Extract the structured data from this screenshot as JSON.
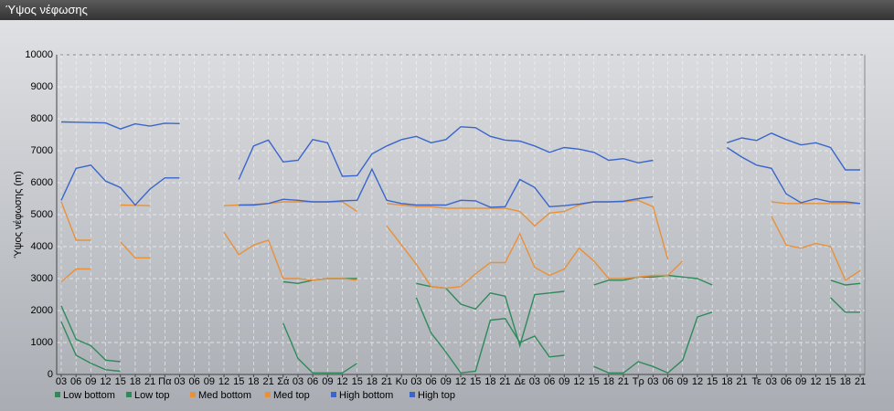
{
  "window_title": "Ύψος νέφωσης",
  "chart_data": {
    "type": "line",
    "ylabel": "Ύψος νέφωσης (m)",
    "ylim": [
      0,
      10000
    ],
    "yticks": [
      0,
      1000,
      2000,
      3000,
      4000,
      5000,
      6000,
      7000,
      8000,
      9000,
      10000
    ],
    "grid": true,
    "legend": "bottom",
    "categories": [
      "03",
      "06",
      "09",
      "12",
      "15",
      "18",
      "21",
      "Πα",
      "03",
      "06",
      "09",
      "12",
      "15",
      "18",
      "21",
      "Σά",
      "03",
      "06",
      "09",
      "12",
      "15",
      "18",
      "21",
      "Κυ",
      "03",
      "06",
      "09",
      "12",
      "15",
      "18",
      "21",
      "Δε",
      "03",
      "06",
      "09",
      "12",
      "15",
      "18",
      "21",
      "Τρ",
      "03",
      "06",
      "09",
      "12",
      "15",
      "18",
      "21",
      "Τε",
      "03",
      "06",
      "09",
      "12",
      "15",
      "18",
      "21"
    ],
    "series": [
      {
        "name": "Low bottom",
        "color": "#2f8a5a",
        "values": [
          1650,
          600,
          350,
          150,
          100,
          null,
          null,
          null,
          null,
          null,
          null,
          null,
          null,
          null,
          null,
          1600,
          500,
          50,
          50,
          50,
          350,
          null,
          null,
          null,
          2400,
          1300,
          700,
          50,
          100,
          1700,
          1750,
          1000,
          1200,
          550,
          600,
          null,
          250,
          50,
          50,
          400,
          250,
          50,
          450,
          1800,
          1950,
          null,
          null,
          null,
          null,
          null,
          null,
          null,
          2400,
          1950,
          1950
        ]
      },
      {
        "name": "Low top",
        "color": "#2f8a5a",
        "values": [
          2150,
          1100,
          900,
          450,
          400,
          null,
          null,
          null,
          null,
          null,
          null,
          null,
          null,
          null,
          null,
          2900,
          2850,
          2950,
          3000,
          3000,
          3000,
          null,
          null,
          null,
          2850,
          2750,
          2700,
          2200,
          2050,
          2550,
          2450,
          900,
          2500,
          2550,
          2600,
          null,
          2800,
          2950,
          2950,
          3050,
          3050,
          3100,
          3050,
          3000,
          2800,
          null,
          null,
          null,
          null,
          null,
          null,
          null,
          2950,
          2800,
          2850
        ]
      },
      {
        "name": "Med bottom",
        "color": "#e8913a",
        "values": [
          2900,
          3300,
          3300,
          null,
          4150,
          3650,
          3650,
          null,
          null,
          null,
          null,
          4450,
          3750,
          4050,
          4200,
          3000,
          3000,
          2950,
          3000,
          3000,
          2950,
          null,
          4650,
          4050,
          3450,
          2750,
          2700,
          2750,
          3150,
          3500,
          3500,
          4400,
          3350,
          3100,
          3300,
          3950,
          3550,
          3000,
          3000,
          3050,
          3100,
          3100,
          3550,
          null,
          null,
          null,
          null,
          null,
          4950,
          4050,
          3950,
          4100,
          4000,
          2950,
          3250
        ]
      },
      {
        "name": "Med top",
        "color": "#e8913a",
        "values": [
          5400,
          4200,
          4200,
          null,
          5300,
          5290,
          5280,
          null,
          null,
          null,
          null,
          5280,
          5300,
          5320,
          5350,
          5400,
          5400,
          5400,
          5400,
          5400,
          5100,
          null,
          5350,
          5300,
          5250,
          5250,
          5200,
          5200,
          5200,
          5200,
          5200,
          5100,
          4650,
          5050,
          5100,
          5300,
          5400,
          5400,
          5400,
          5450,
          5250,
          3600,
          null,
          null,
          null,
          null,
          null,
          null,
          5400,
          5350,
          5350,
          5350,
          5350,
          5350,
          5350
        ]
      },
      {
        "name": "High bottom",
        "color": "#3a66cc",
        "values": [
          5450,
          6450,
          6550,
          6050,
          5850,
          5300,
          5800,
          6150,
          6150,
          null,
          null,
          null,
          5300,
          5300,
          5350,
          5480,
          5450,
          5400,
          5400,
          5430,
          5450,
          6420,
          5450,
          5350,
          5300,
          5300,
          5300,
          5450,
          5430,
          5230,
          5250,
          6100,
          5850,
          5250,
          5280,
          5330,
          5400,
          5400,
          5420,
          5500,
          5560,
          null,
          null,
          null,
          null,
          7100,
          6800,
          6550,
          6450,
          5650,
          5370,
          5500,
          5400,
          5400,
          5350
        ]
      },
      {
        "name": "High top",
        "color": "#3a66cc",
        "values": [
          7900,
          7890,
          7880,
          7870,
          7680,
          7840,
          7770,
          7860,
          7850,
          null,
          null,
          null,
          6100,
          7150,
          7330,
          6650,
          6700,
          7350,
          7250,
          6200,
          6220,
          6900,
          7150,
          7350,
          7450,
          7250,
          7350,
          7750,
          7720,
          7450,
          7330,
          7300,
          7150,
          6950,
          7100,
          7050,
          6950,
          6700,
          6750,
          6620,
          6700,
          null,
          null,
          null,
          null,
          7250,
          7400,
          7320,
          7550,
          7350,
          7180,
          7250,
          7100,
          6400,
          6400
        ]
      }
    ]
  }
}
